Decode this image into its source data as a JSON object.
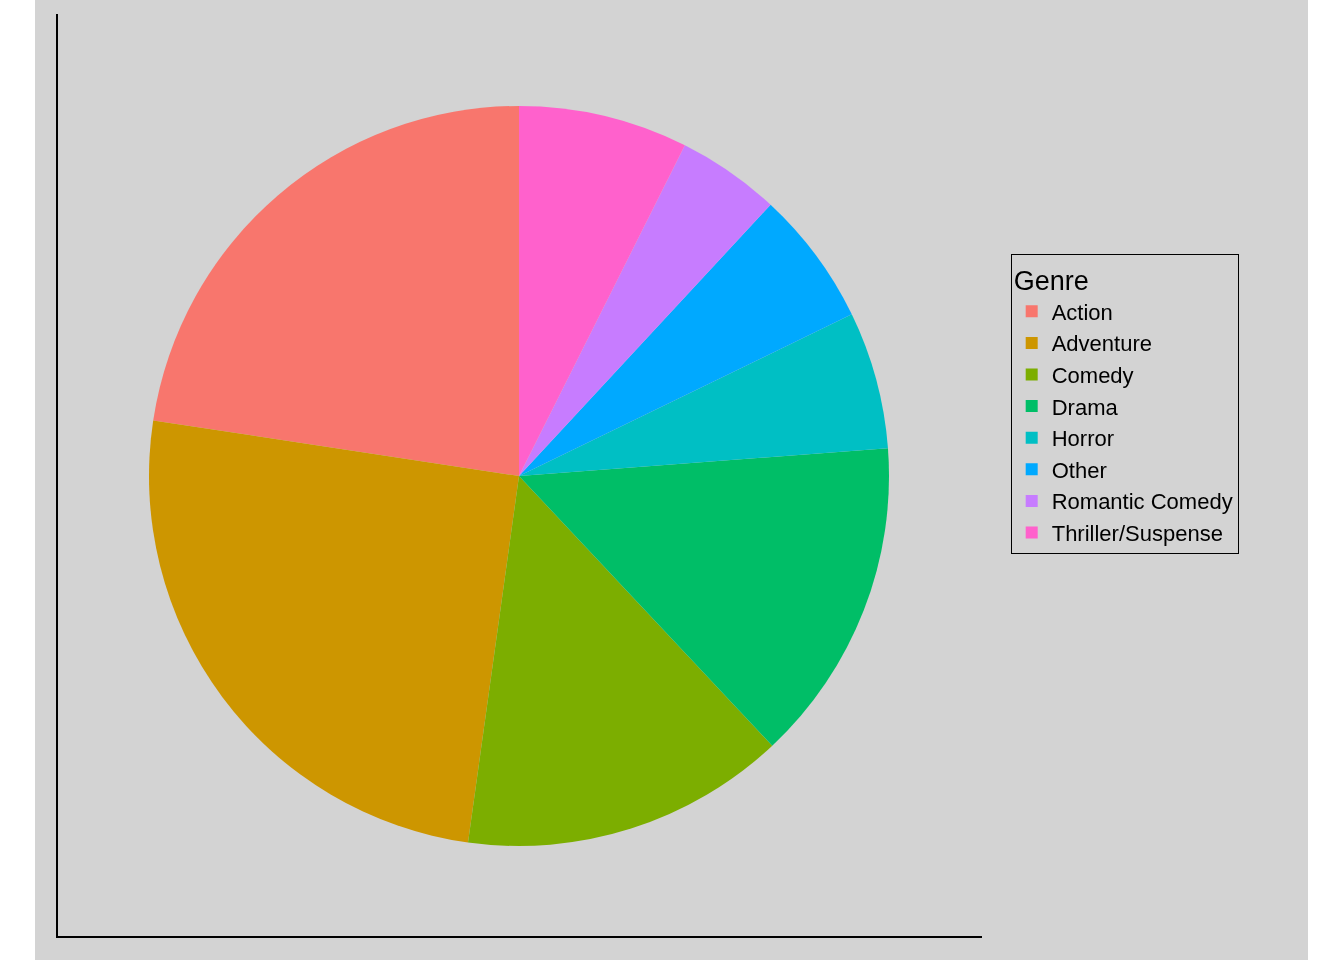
{
  "chart_data": {
    "type": "pie",
    "legend_title": "Genre",
    "legend": "right",
    "categories": [
      "Action",
      "Adventure",
      "Comedy",
      "Drama",
      "Horror",
      "Other",
      "Romantic Comedy",
      "Thriller/Suspense"
    ],
    "values": [
      22.6,
      25.2,
      14.2,
      14.2,
      6.0,
      5.9,
      4.5,
      7.4
    ],
    "colors": [
      "#f8766d",
      "#cd9600",
      "#7cae00",
      "#00be67",
      "#00bfc4",
      "#00a9ff",
      "#c77cff",
      "#ff61cc"
    ]
  }
}
